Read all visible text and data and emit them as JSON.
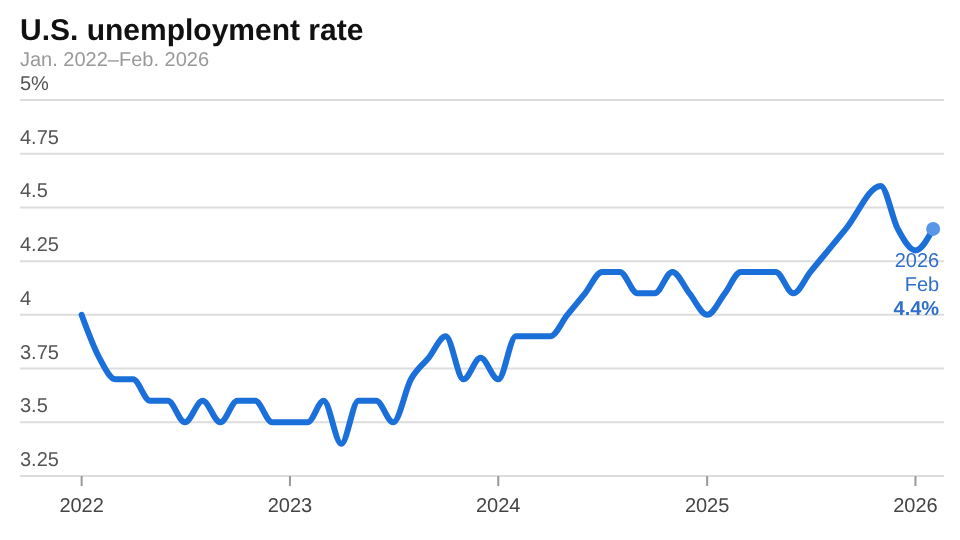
{
  "chart_data": {
    "type": "line",
    "title": "U.S. unemployment rate",
    "subtitle": "Jan. 2022–Feb. 2026",
    "series": [
      {
        "color": "#1a6fd9",
        "x": [
          "2022-01",
          "2022-02",
          "2022-03",
          "2022-04",
          "2022-05",
          "2022-06",
          "2022-07",
          "2022-08",
          "2022-09",
          "2022-10",
          "2022-11",
          "2022-12",
          "2023-01",
          "2023-02",
          "2023-03",
          "2023-04",
          "2023-05",
          "2023-06",
          "2023-07",
          "2023-08",
          "2023-09",
          "2023-10",
          "2023-11",
          "2023-12",
          "2024-01",
          "2024-02",
          "2024-03",
          "2024-04",
          "2024-05",
          "2024-06",
          "2024-07",
          "2024-08",
          "2024-09",
          "2024-10",
          "2024-11",
          "2024-12",
          "2025-01",
          "2025-02",
          "2025-03",
          "2025-04",
          "2025-05",
          "2025-06",
          "2025-07",
          "2025-08",
          "2025-09",
          "2025-11",
          "2025-12",
          "2026-01",
          "2026-02"
        ],
        "values": [
          4.0,
          3.8,
          3.7,
          3.7,
          3.6,
          3.6,
          3.5,
          3.6,
          3.5,
          3.6,
          3.6,
          3.5,
          3.5,
          3.5,
          3.6,
          3.4,
          3.6,
          3.6,
          3.5,
          3.7,
          3.8,
          3.9,
          3.7,
          3.8,
          3.7,
          3.9,
          3.9,
          3.9,
          4.0,
          4.1,
          4.2,
          4.2,
          4.1,
          4.1,
          4.2,
          4.1,
          4.0,
          4.1,
          4.2,
          4.2,
          4.2,
          4.1,
          4.2,
          4.3,
          4.4,
          4.6,
          4.4,
          4.3,
          4.4
        ]
      }
    ],
    "xlim": [
      "2021-09-15",
      "2026-02-20"
    ],
    "xticks": [
      {
        "value": "2022",
        "label": "2022"
      },
      {
        "value": "2023",
        "label": "2023"
      },
      {
        "value": "2024",
        "label": "2024"
      },
      {
        "value": "2025",
        "label": "2025"
      },
      {
        "value": "2026",
        "label": "2026"
      }
    ],
    "ylim": [
      3.25,
      5
    ],
    "yticks": [
      3.25,
      3.5,
      3.75,
      4,
      4.25,
      4.5,
      4.75,
      {
        "value": 5,
        "label": "5%"
      }
    ],
    "grid": "y",
    "marker": "none",
    "line_style": "solid",
    "annotations": [
      {
        "text": "2026\nFeb\n4.4%",
        "x": "2026-02",
        "y": 4.4
      }
    ]
  }
}
